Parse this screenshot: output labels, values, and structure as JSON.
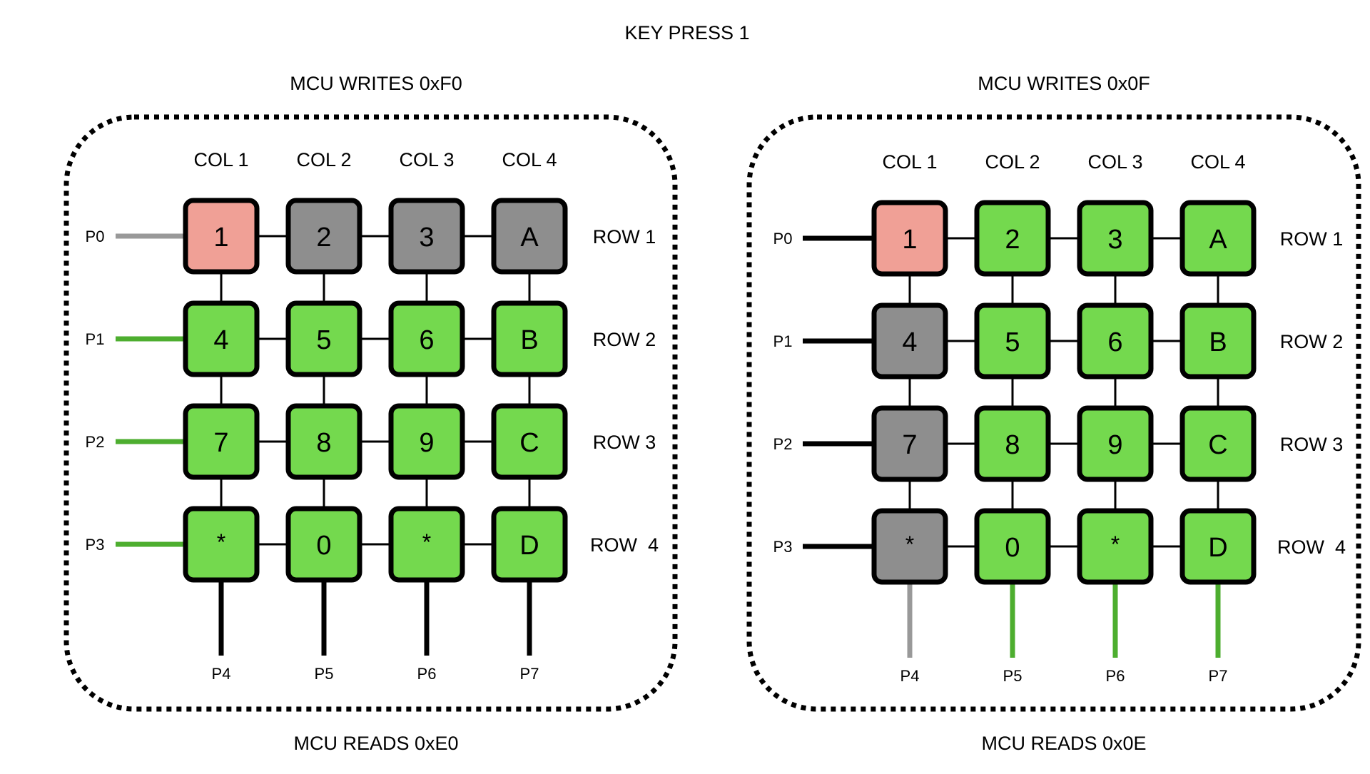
{
  "title": "KEY PRESS 1",
  "colors": {
    "pressed": "#f0a096",
    "gray": "#8e8e8e",
    "green": "#74d94e",
    "line_green": "#4dae2f",
    "line_gray": "#999999",
    "line_black": "#000000"
  },
  "panels": [
    {
      "write_label": "MCU WRITES 0xF0",
      "read_label": "MCU READS 0xE0",
      "col_labels": [
        "COL 1",
        "COL 2",
        "COL 3",
        "COL 4"
      ],
      "row_labels": [
        "ROW 1",
        "ROW 2",
        "ROW 3",
        "ROW  4"
      ],
      "row_pins": [
        "P0",
        "P1",
        "P2",
        "P3"
      ],
      "col_pins": [
        "P4",
        "P5",
        "P6",
        "P7"
      ],
      "row_line_states": [
        "gray",
        "green",
        "green",
        "green"
      ],
      "col_line_states": [
        "black",
        "black",
        "black",
        "black"
      ],
      "keys": [
        [
          {
            "label": "1",
            "state": "pressed"
          },
          {
            "label": "2",
            "state": "gray"
          },
          {
            "label": "3",
            "state": "gray"
          },
          {
            "label": "A",
            "state": "gray"
          }
        ],
        [
          {
            "label": "4",
            "state": "green"
          },
          {
            "label": "5",
            "state": "green"
          },
          {
            "label": "6",
            "state": "green"
          },
          {
            "label": "B",
            "state": "green"
          }
        ],
        [
          {
            "label": "7",
            "state": "green"
          },
          {
            "label": "8",
            "state": "green"
          },
          {
            "label": "9",
            "state": "green"
          },
          {
            "label": "C",
            "state": "green"
          }
        ],
        [
          {
            "label": "*",
            "state": "green"
          },
          {
            "label": "0",
            "state": "green"
          },
          {
            "label": "*",
            "state": "green"
          },
          {
            "label": "D",
            "state": "green"
          }
        ]
      ]
    },
    {
      "write_label": "MCU WRITES 0x0F",
      "read_label": "MCU READS 0x0E",
      "col_labels": [
        "COL 1",
        "COL 2",
        "COL 3",
        "COL 4"
      ],
      "row_labels": [
        "ROW 1",
        "ROW 2",
        "ROW 3",
        "ROW  4"
      ],
      "row_pins": [
        "P0",
        "P1",
        "P2",
        "P3"
      ],
      "col_pins": [
        "P4",
        "P5",
        "P6",
        "P7"
      ],
      "row_line_states": [
        "black",
        "black",
        "black",
        "black"
      ],
      "col_line_states": [
        "gray",
        "green",
        "green",
        "green"
      ],
      "keys": [
        [
          {
            "label": "1",
            "state": "pressed"
          },
          {
            "label": "2",
            "state": "green"
          },
          {
            "label": "3",
            "state": "green"
          },
          {
            "label": "A",
            "state": "green"
          }
        ],
        [
          {
            "label": "4",
            "state": "gray"
          },
          {
            "label": "5",
            "state": "green"
          },
          {
            "label": "6",
            "state": "green"
          },
          {
            "label": "B",
            "state": "green"
          }
        ],
        [
          {
            "label": "7",
            "state": "gray"
          },
          {
            "label": "8",
            "state": "green"
          },
          {
            "label": "9",
            "state": "green"
          },
          {
            "label": "C",
            "state": "green"
          }
        ],
        [
          {
            "label": "*",
            "state": "gray"
          },
          {
            "label": "0",
            "state": "green"
          },
          {
            "label": "*",
            "state": "green"
          },
          {
            "label": "D",
            "state": "green"
          }
        ]
      ]
    }
  ]
}
